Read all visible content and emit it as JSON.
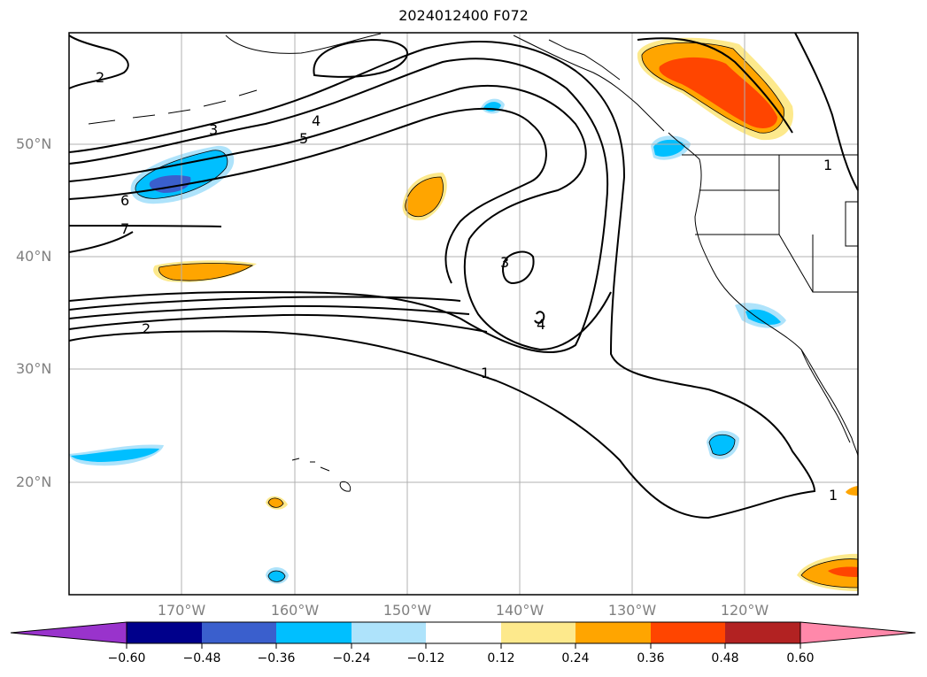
{
  "title": "2024012400 F072",
  "lon_labels": [
    "170°W",
    "160°W",
    "150°W",
    "140°W",
    "130°W",
    "120°W"
  ],
  "lat_labels": [
    "50°N",
    "40°N",
    "30°N",
    "20°N"
  ],
  "contour_labels": [
    "2",
    "3",
    "4",
    "5",
    "6",
    "7",
    "2",
    "3",
    "4",
    "1",
    "1",
    "1"
  ],
  "colorbar": {
    "ticks": [
      "−0.60",
      "−0.48",
      "−0.36",
      "−0.24",
      "−0.12",
      "0.12",
      "0.24",
      "0.36",
      "0.48",
      "0.60"
    ],
    "colors": [
      "#9933cc",
      "#00008b",
      "#3a5fcd",
      "#00bfff",
      "#aee3fb",
      "#ffffff",
      "#fde98c",
      "#ffa500",
      "#ff4500",
      "#b22222",
      "#ff88aa"
    ]
  }
}
